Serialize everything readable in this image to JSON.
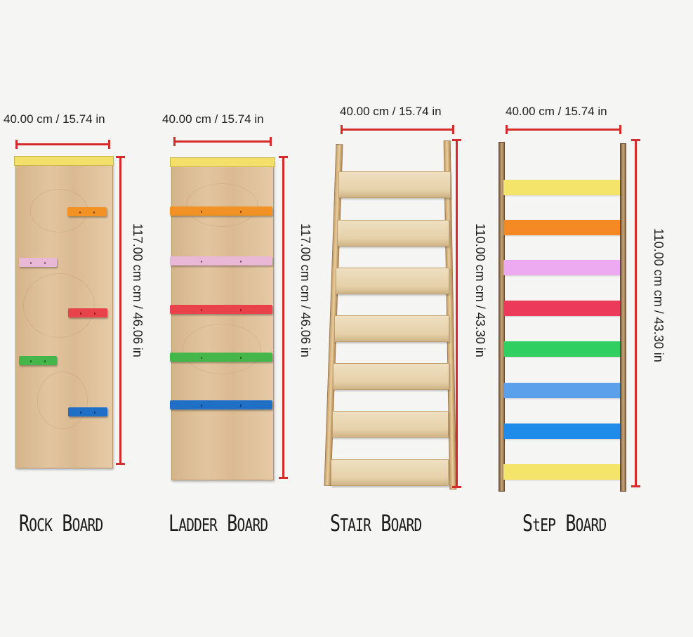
{
  "boards": [
    {
      "name_initial": "R",
      "name_rest": "OCK",
      "name_initial2": "B",
      "name_rest2": "OARD",
      "width_label": "40.00 cm / 15.74 in",
      "height_label": "117.00 cm  cm / 46.06 in",
      "hold_colors": [
        "#f39224",
        "#e9b8d6",
        "#e8424a",
        "#45b74a",
        "#1f6fc6"
      ]
    },
    {
      "name_initial": "L",
      "name_rest": "ADDER",
      "name_initial2": "B",
      "name_rest2": "OARD",
      "width_label": "40.00 cm / 15.74 in",
      "height_label": "117.00 cm  cm / 46.06 in",
      "hold_colors": [
        "#f39224",
        "#e9b8d6",
        "#e8424a",
        "#45b74a",
        "#1f6fc6"
      ]
    },
    {
      "name_initial": "S",
      "name_rest": "TAIR",
      "name_initial2": "B",
      "name_rest2": "OARD",
      "width_label": "40.00 cm / 15.74 in",
      "height_label": "110.00 cm cm / 43.30 in"
    },
    {
      "name_initial": "S",
      "name_rest": "TEP",
      "name_initial2": "B",
      "name_rest2": "OARD",
      "name_t_mixed": "tEP",
      "width_label": "40.00 cm / 15.74 in",
      "height_label": "110.00 cm cm / 43.30 in",
      "rung_colors": [
        "#f5e46a",
        "#f58a25",
        "#eeaaf0",
        "#ec3a5a",
        "#2fcf62",
        "#5aa0ea",
        "#1e8ce8",
        "#f5e46a"
      ]
    }
  ],
  "colors": {
    "measure_red": "#d62b2b",
    "background": "#f5f5f4"
  }
}
